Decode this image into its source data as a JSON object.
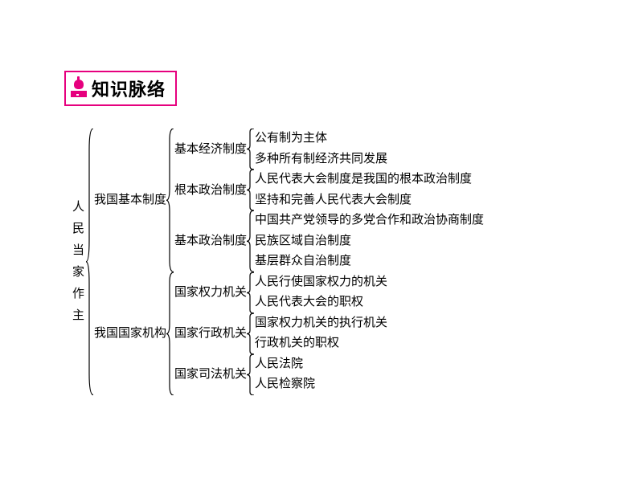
{
  "colors": {
    "accent": "#e6007e",
    "text": "#000000",
    "background": "#ffffff"
  },
  "typography": {
    "title_fontsize": 22,
    "title_weight": "bold",
    "body_fontsize": 15,
    "body_lineheight": 1.7
  },
  "header": {
    "icon": "apple-on-book-icon",
    "title": "知识脉络"
  },
  "tree": {
    "type": "tree",
    "root": {
      "label": "人民当家作主",
      "vertical": true,
      "children": [
        {
          "label": "我国基本制度",
          "children": [
            {
              "label": "基本经济制度",
              "children": [
                {
                  "label": "公有制为主体"
                },
                {
                  "label": "多种所有制经济共同发展"
                }
              ]
            },
            {
              "label": "根本政治制度",
              "children": [
                {
                  "label": "人民代表大会制度是我国的根本政治制度"
                },
                {
                  "label": "坚持和完善人民代表大会制度"
                }
              ]
            },
            {
              "label": "基本政治制度",
              "children": [
                {
                  "label": "中国共产党领导的多党合作和政治协商制度"
                },
                {
                  "label": "民族区域自治制度"
                },
                {
                  "label": "基层群众自治制度"
                }
              ]
            }
          ]
        },
        {
          "label": "我国国家机构",
          "children": [
            {
              "label": "国家权力机关",
              "children": [
                {
                  "label": "人民行使国家权力的机关"
                },
                {
                  "label": "人民代表大会的职权"
                }
              ]
            },
            {
              "label": "国家行政机关",
              "children": [
                {
                  "label": "国家权力机关的执行机关"
                },
                {
                  "label": "行政机关的职权"
                }
              ]
            },
            {
              "label": "国家司法机关",
              "children": [
                {
                  "label": "人民法院"
                },
                {
                  "label": "人民检察院"
                }
              ]
            }
          ]
        }
      ]
    }
  }
}
